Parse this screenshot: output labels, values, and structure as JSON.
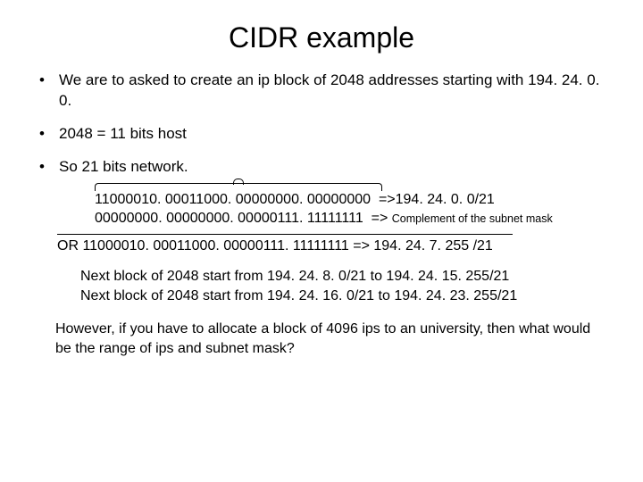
{
  "title": "CIDR example",
  "bullets": [
    "We are to asked to create an ip block of 2048 addresses starting with 194. 24. 0. 0.",
    "2048 = 11 bits host",
    "So 21 bits network."
  ],
  "binary": {
    "row1_bits": "11000010. 00011000. 00000000. 00000000",
    "row1_note": "  =>194. 24. 0. 0/21",
    "row2_bits": "00000000. 00000000. 00000111. 11111111",
    "row2_note_prefix": "  => ",
    "row2_note_small": "Complement of the subnet mask"
  },
  "or_line": "OR 11000010. 00011000. 00000111. 11111111 => 194. 24. 7. 255 /21",
  "next_blocks": [
    "Next block of 2048 start from 194. 24. 8. 0/21 to 194. 24. 15. 255/21",
    "Next block of 2048 start from 194. 24. 16. 0/21 to 194. 24. 23. 255/21"
  ],
  "question": "However, if you have to allocate a block of 4096 ips to an university, then what would be the range of ips and subnet mask?"
}
